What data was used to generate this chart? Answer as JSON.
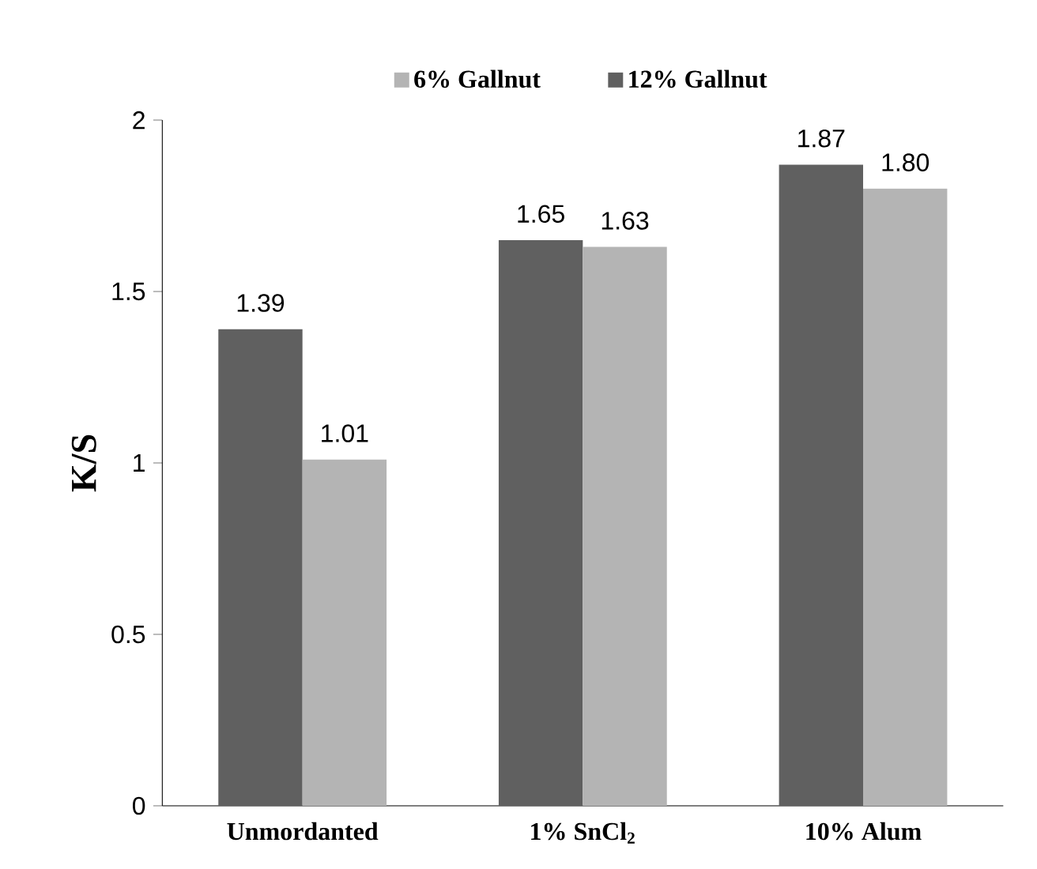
{
  "chart_data": {
    "type": "bar",
    "ylabel": "K/S",
    "categories": [
      "Unmordanted",
      "1% SnCl$_{2}$",
      "10% Alum"
    ],
    "series": [
      {
        "name": "12% Gallnut",
        "color": "#606060",
        "values": [
          1.39,
          1.65,
          1.87
        ],
        "value_labels": [
          "1.39",
          "1.65",
          "1.87"
        ]
      },
      {
        "name": "6% Gallnut",
        "color": "#b4b4b4",
        "values": [
          1.01,
          1.63,
          1.8
        ],
        "value_labels": [
          "1.01",
          "1.63",
          "1.80"
        ]
      }
    ],
    "ylim": [
      0,
      2
    ],
    "yticks": [
      0,
      0.5,
      1,
      1.5,
      2
    ],
    "legend": "top",
    "grid": false
  }
}
